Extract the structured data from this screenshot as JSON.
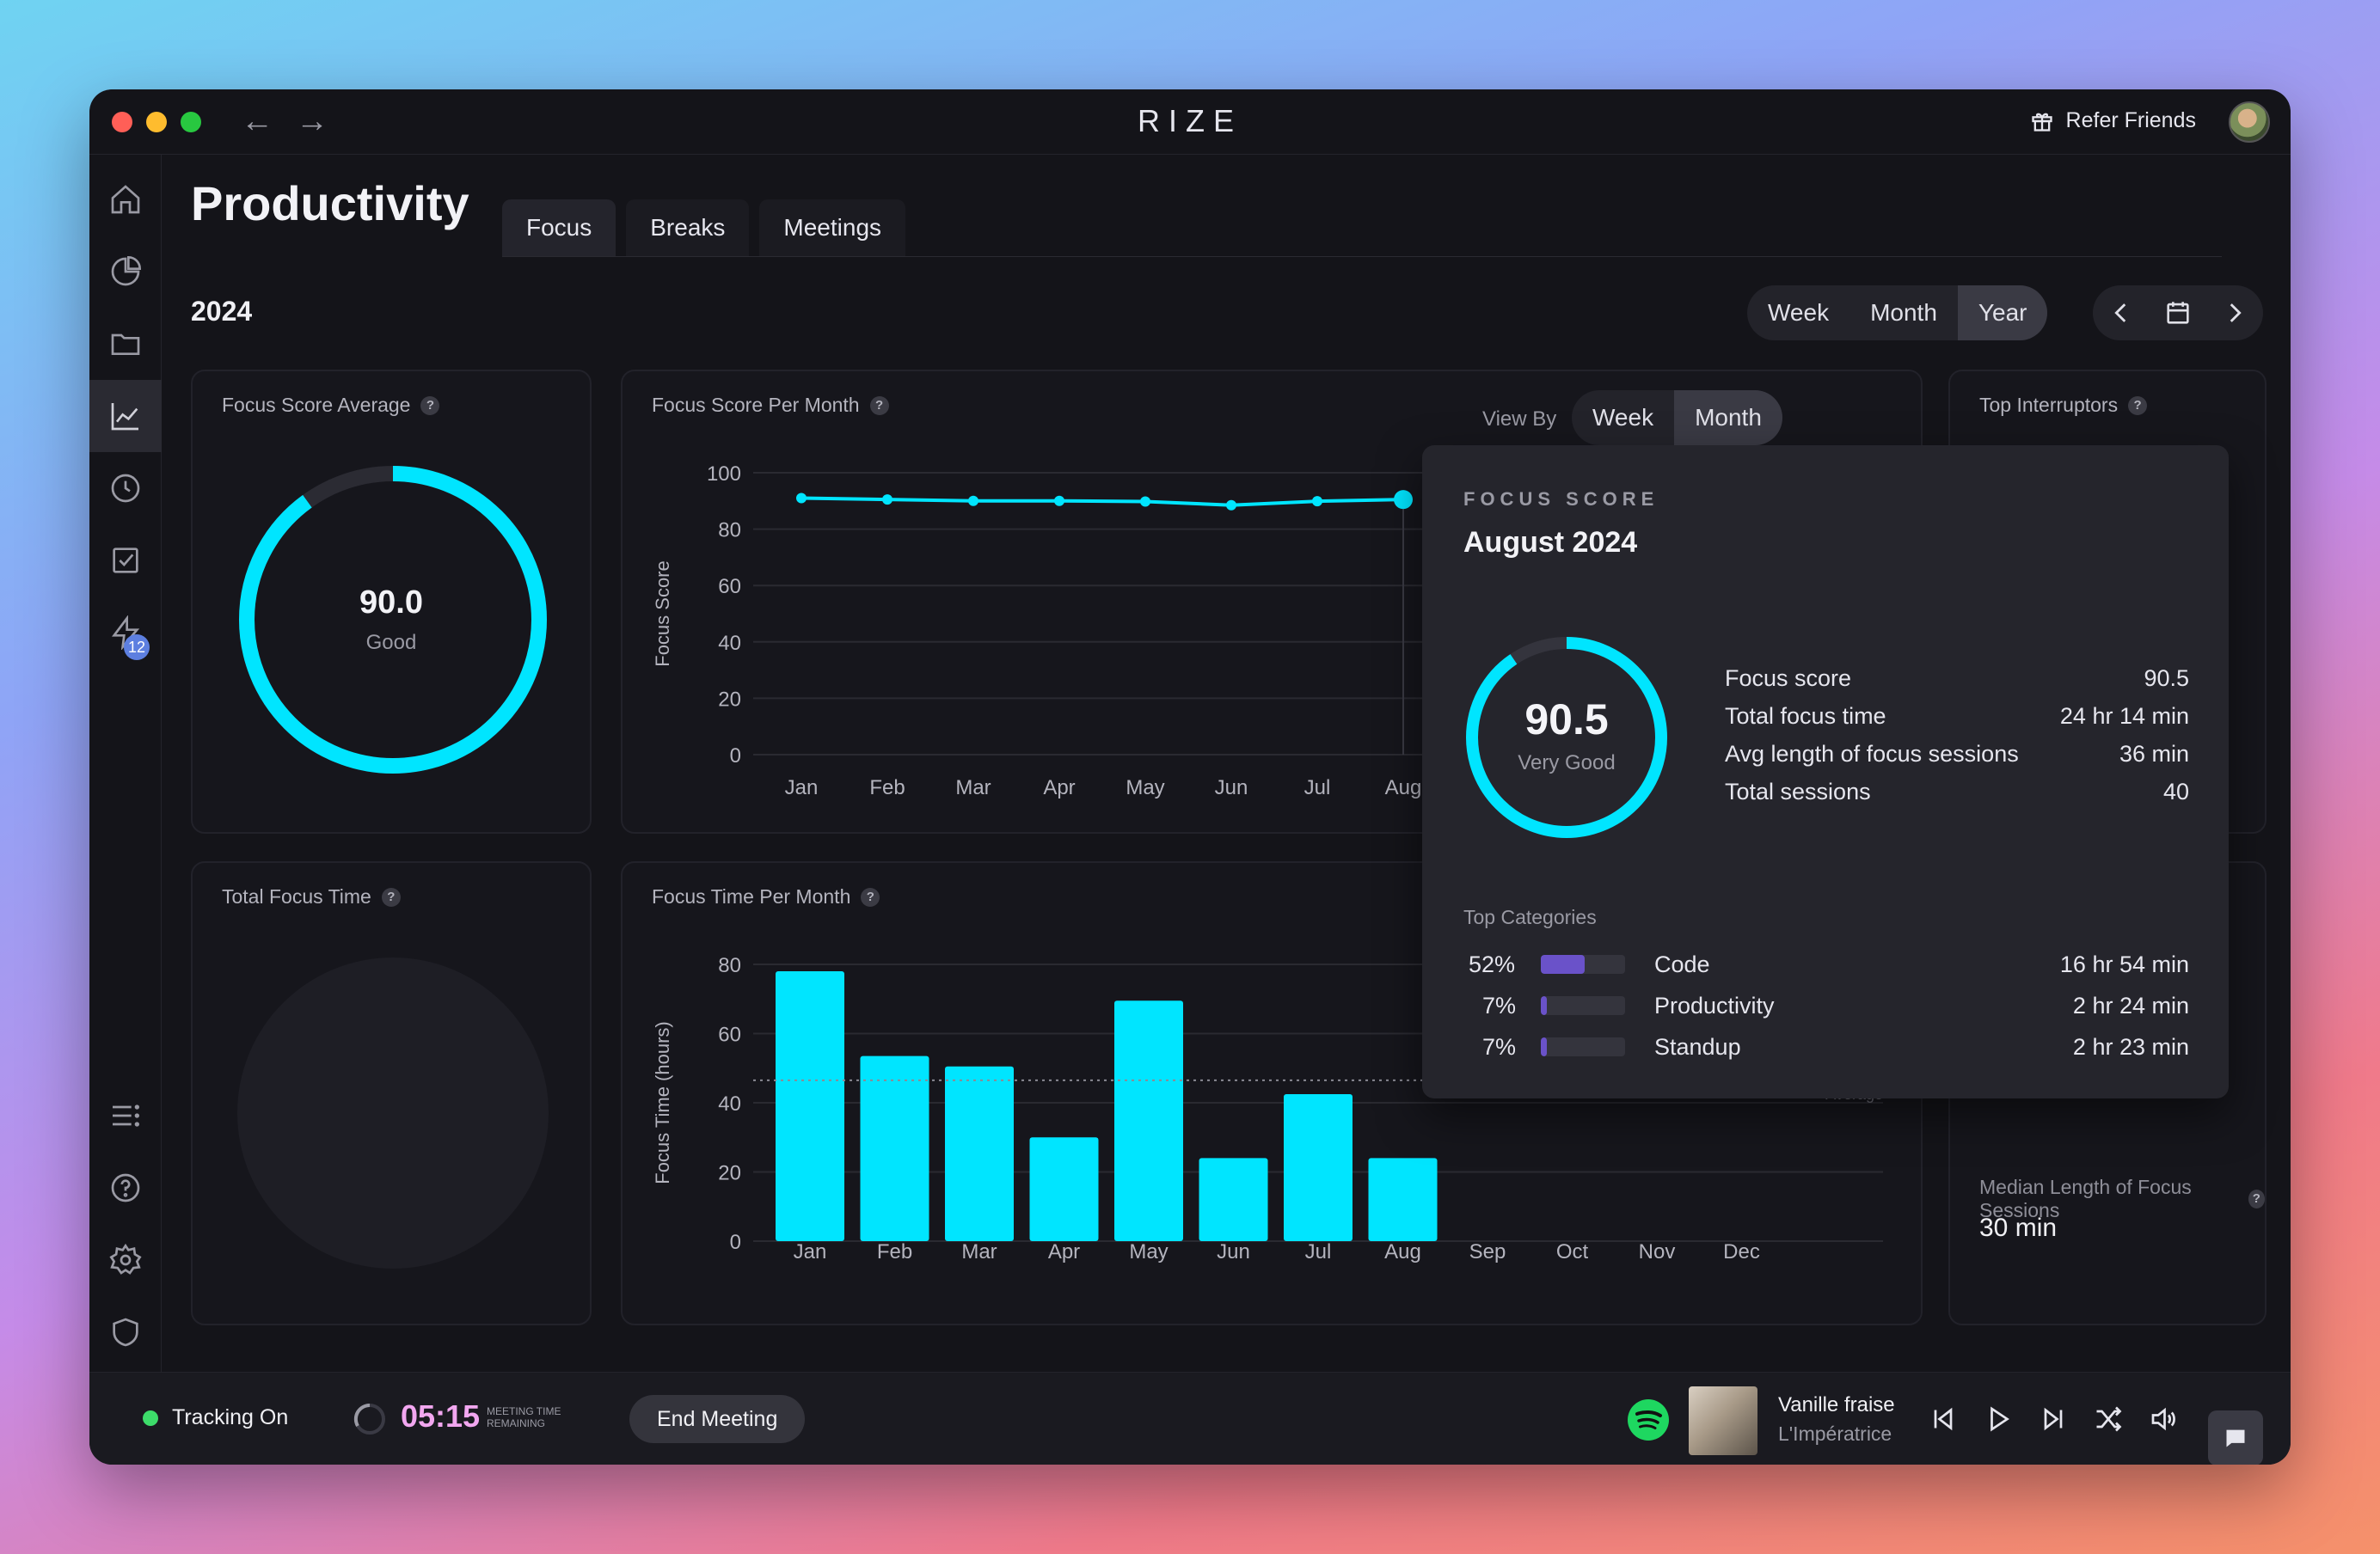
{
  "app": {
    "title": "RIZE",
    "refer_label": "Refer Friends",
    "nav_back": "←",
    "nav_forward": "→"
  },
  "sidebar": {
    "badge_count": "12",
    "items": [
      "home-icon",
      "pie-chart-icon",
      "folder-icon",
      "trend-chart-icon",
      "clock-icon",
      "checkbox-icon",
      "bolt-icon",
      "list-icon",
      "help-icon",
      "gear-icon",
      "shield-icon"
    ]
  },
  "page": {
    "title": "Productivity",
    "tabs": [
      "Focus",
      "Breaks",
      "Meetings"
    ],
    "year": "2024"
  },
  "range_toggle": [
    "Week",
    "Month",
    "Year"
  ],
  "cards": {
    "focus_avg": {
      "title": "Focus Score Average",
      "value": "90.0",
      "label": "Good",
      "fraction": 0.9
    },
    "focus_month": {
      "title": "Focus Score Per Month",
      "view_by": "View By",
      "toggle": [
        "Week",
        "Month"
      ]
    },
    "interruptors": {
      "title": "Top Interruptors"
    },
    "total_focus": {
      "title": "Total Focus Time"
    },
    "focus_time_month": {
      "title": "Focus Time Per Month",
      "average_label": "Average"
    },
    "median": {
      "title": "Median Length of Focus Sessions",
      "value": "30 min"
    }
  },
  "chart_data": [
    {
      "type": "line",
      "ylabel": "Focus Score",
      "categories": [
        "Jan",
        "Feb",
        "Mar",
        "Apr",
        "May",
        "Jun",
        "Jul",
        "Aug"
      ],
      "values": [
        91,
        90.5,
        90,
        90,
        89.8,
        88.5,
        89.9,
        90.5
      ],
      "yticks": [
        "100",
        "80",
        "60",
        "40",
        "20",
        "0"
      ],
      "ylim": [
        0,
        100
      ]
    },
    {
      "type": "bar",
      "ylabel": "Focus Time (hours)",
      "categories": [
        "Jan",
        "Feb",
        "Mar",
        "Apr",
        "May",
        "Jun",
        "Jul",
        "Aug",
        "Sep",
        "Oct",
        "Nov",
        "Dec"
      ],
      "values": [
        78,
        53.5,
        50.5,
        30,
        69.5,
        24,
        42.5,
        24,
        0,
        0,
        0,
        0
      ],
      "yticks": [
        "80",
        "60",
        "40",
        "20",
        "0"
      ],
      "ylim": [
        0,
        80
      ],
      "average": 46.5
    }
  ],
  "popup": {
    "kicker": "FOCUS SCORE",
    "title": "August 2024",
    "score": "90.5",
    "score_label": "Very Good",
    "score_fraction": 0.905,
    "stats": [
      {
        "label": "Focus score",
        "value": "90.5"
      },
      {
        "label": "Total focus time",
        "value": "24 hr 14 min"
      },
      {
        "label": "Avg length of focus sessions",
        "value": "36 min"
      },
      {
        "label": "Total sessions",
        "value": "40"
      }
    ],
    "categories_title": "Top Categories",
    "categories": [
      {
        "pct": "52%",
        "fraction": 0.52,
        "name": "Code",
        "time": "16 hr 54 min"
      },
      {
        "pct": "7%",
        "fraction": 0.07,
        "name": "Productivity",
        "time": "2 hr 24 min"
      },
      {
        "pct": "7%",
        "fraction": 0.07,
        "name": "Standup",
        "time": "2 hr 23 min"
      }
    ]
  },
  "bottom": {
    "tracking": "Tracking On",
    "timer": "05:15",
    "timer_caption_1": "MEETING TIME",
    "timer_caption_2": "REMAINING",
    "end_meeting": "End Meeting",
    "song": "Vanille fraise",
    "artist": "L'Impératrice"
  },
  "colors": {
    "accent": "#00e5ff",
    "purple": "#6a52c9",
    "tracking_green": "#3ddc6a",
    "timer_pink": "#f2a7f0"
  }
}
